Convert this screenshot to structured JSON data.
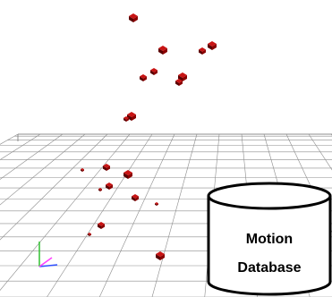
{
  "scene": {
    "floor": {
      "description_visible": false,
      "grid_color": "#8c8c8c",
      "cell_count": 16
    },
    "markers": {
      "count": 20,
      "fill": "#c81414",
      "dark": "#5a0000"
    },
    "axes": {
      "x_color": "#3050ff",
      "y_color": "#30c030",
      "z_color": "#ff40ff"
    }
  },
  "database": {
    "label_line1": "Motion",
    "label_line2": "Database"
  }
}
